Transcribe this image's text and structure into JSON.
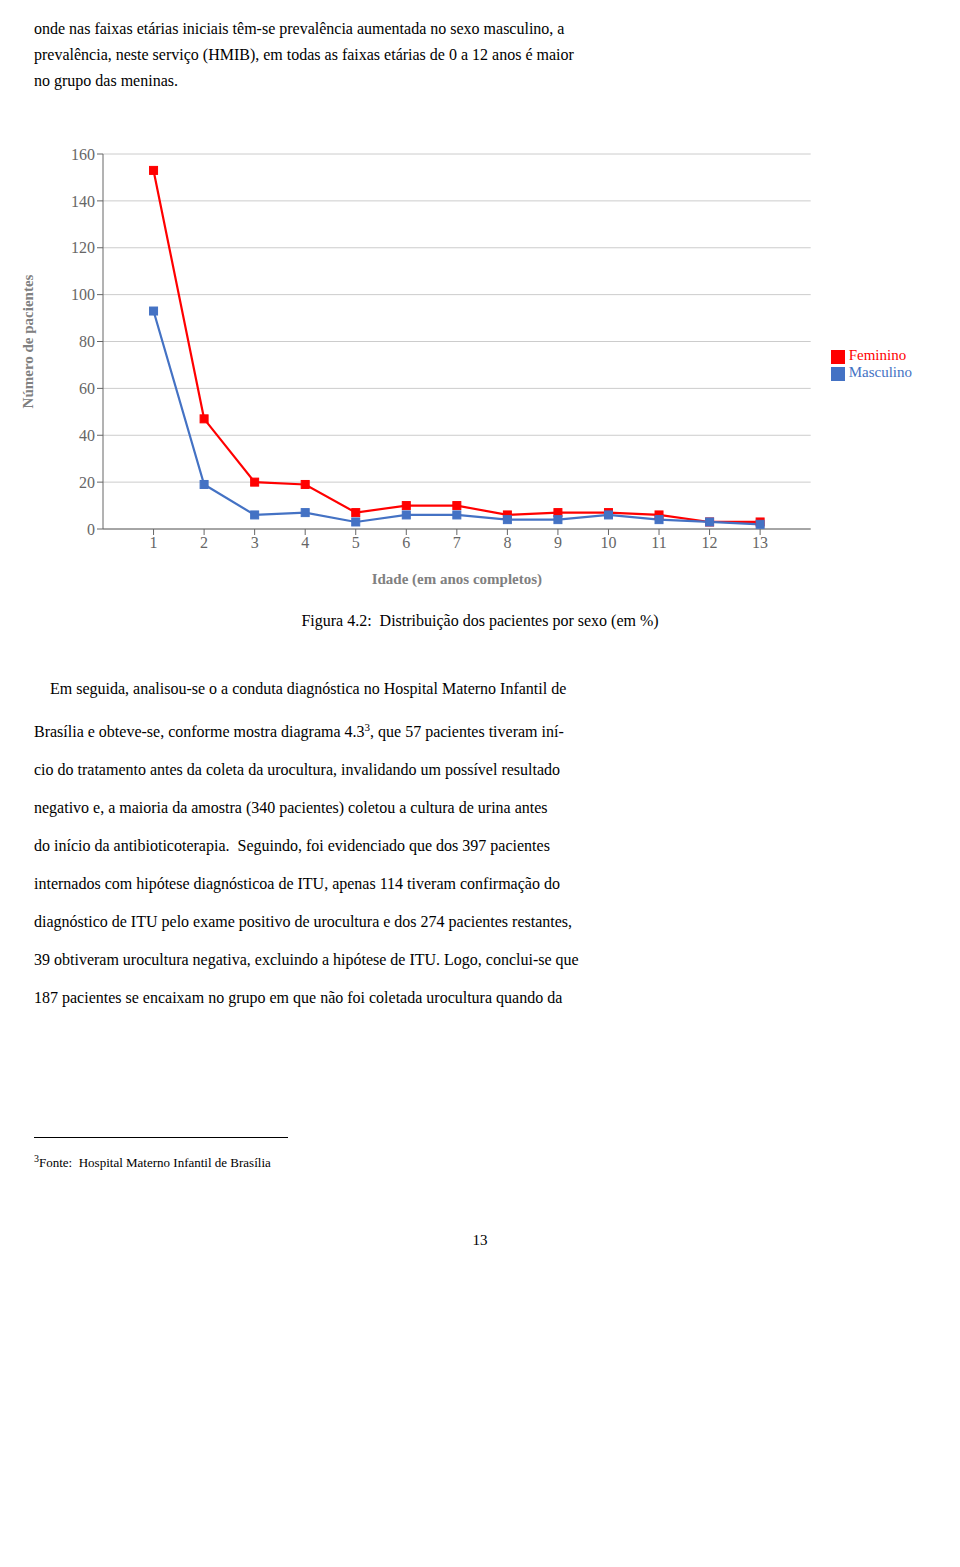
{
  "chart_data": {
    "type": "line",
    "title": "Figura 4.2:  Distribuição dos pacientes por sexo (em %)",
    "xlabel": "Idade (em anos completos)",
    "ylabel": "Número de pacientes",
    "x": [
      1,
      2,
      3,
      4,
      5,
      6,
      7,
      8,
      9,
      10,
      11,
      12,
      13
    ],
    "series": [
      {
        "name": "Feminino",
        "color": "#FF0000",
        "marker": "square",
        "values": [
          153,
          47,
          20,
          19,
          7,
          10,
          10,
          6,
          7,
          7,
          6,
          3,
          3
        ]
      },
      {
        "name": "Masculino",
        "color": "#4472C4",
        "marker": "square",
        "values": [
          93,
          19,
          6,
          7,
          3,
          6,
          6,
          4,
          4,
          6,
          4,
          3,
          2
        ]
      }
    ],
    "xlim": [
      0,
      14
    ],
    "xticks": [
      1,
      2,
      3,
      4,
      5,
      6,
      7,
      8,
      9,
      10,
      11,
      12,
      13
    ],
    "ylim": [
      0,
      160
    ],
    "yticks": [
      0,
      20,
      40,
      60,
      80,
      100,
      120,
      140,
      160
    ],
    "grid": true,
    "legend": "right",
    "annotations": [
      "onde nas faixas etárias iniciais têm-se prevalência aumentada no sexo masculino, a",
      "prevalência, neste serviço (HMIB), em todas as faixas etárias de 0 a 12 anos é maior",
      "no grupo das meninas.",
      "    Em seguida, analisou-se o a conduta diagnóstica no Hospital Materno Infantil de",
      "Brasília e obteve-se, conforme mostra diagrama 4.3",
      "3",
      ", que 57 pacientes tiveram iní-",
      "cio do tratamento antes da coleta da urocultura, invalidando um possível resultado",
      "negativo e, a maioria da amostra (340 pacientes) coletou a cultura de urina antes",
      "do início da antibioticoterapia.  Seguindo, foi evidenciado que dos 397 pacientes",
      "internados com hipótese diagnósticoa de ITU, apenas 114 tiveram confirmação do",
      "diagnóstico de ITU pelo exame positivo de urocultura e dos 274 pacientes restantes,",
      "39 obtiveram urocultura negativa, excluindo a hipótese de ITU. Logo, conclui-se que",
      "187 pacientes se encaixam no grupo em que não foi coletada urocultura quando da",
      "3",
      "Fonte:  Hospital Materno Infantil de Brasília",
      "13"
    ]
  }
}
